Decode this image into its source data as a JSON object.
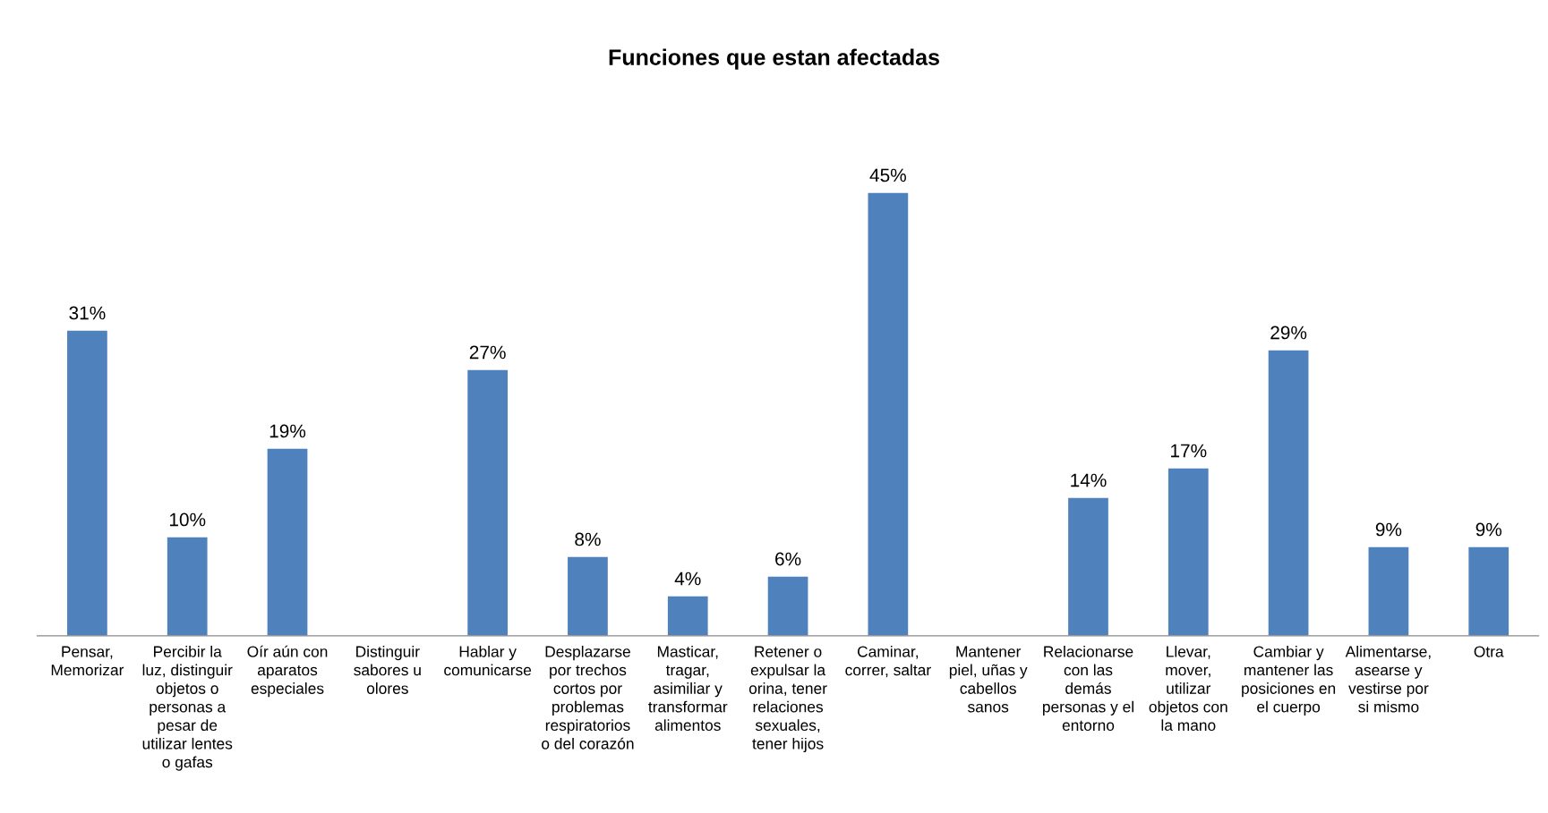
{
  "chart_data": {
    "type": "bar",
    "title": "Funciones que estan afectadas",
    "categories": [
      "Pensar,\nMemorizar",
      "Percibir la\nluz, distinguir\nobjetos o\npersonas a\npesar de\nutilizar lentes\no gafas",
      "Oír aún con\naparatos\nespeciales",
      "Distinguir\nsabores u\nolores",
      "Hablar y\ncomunicarse",
      "Desplazarse\npor trechos\ncortos por\nproblemas\nrespiratorios\no del corazón",
      "Masticar,\ntragar,\nasimiliar y\ntransformar\nalimentos",
      "Retener o\nexpulsar la\norina, tener\nrelaciones\nsexuales,\ntener hijos",
      "Caminar,\ncorrer, saltar",
      "Mantener\npiel, uñas y\ncabellos\nsanos",
      "Relacionarse\ncon las\ndemás\npersonas y el\nentorno",
      "Llevar,\nmover,\nutilizar\nobjetos con\nla mano",
      "Cambiar y\nmantener las\nposiciones en\nel cuerpo",
      "Alimentarse,\nasearse y\nvestirse por\nsi mismo",
      "Otra"
    ],
    "values": [
      31,
      10,
      19,
      null,
      27,
      8,
      4,
      6,
      45,
      null,
      14,
      17,
      29,
      9,
      9
    ],
    "value_labels": [
      "31%",
      "10%",
      "19%",
      null,
      "27%",
      "8%",
      "4%",
      "6%",
      "45%",
      null,
      "14%",
      "17%",
      "29%",
      "9%",
      "9%"
    ],
    "color": "#4f81bd",
    "grid": false,
    "legend": false
  }
}
